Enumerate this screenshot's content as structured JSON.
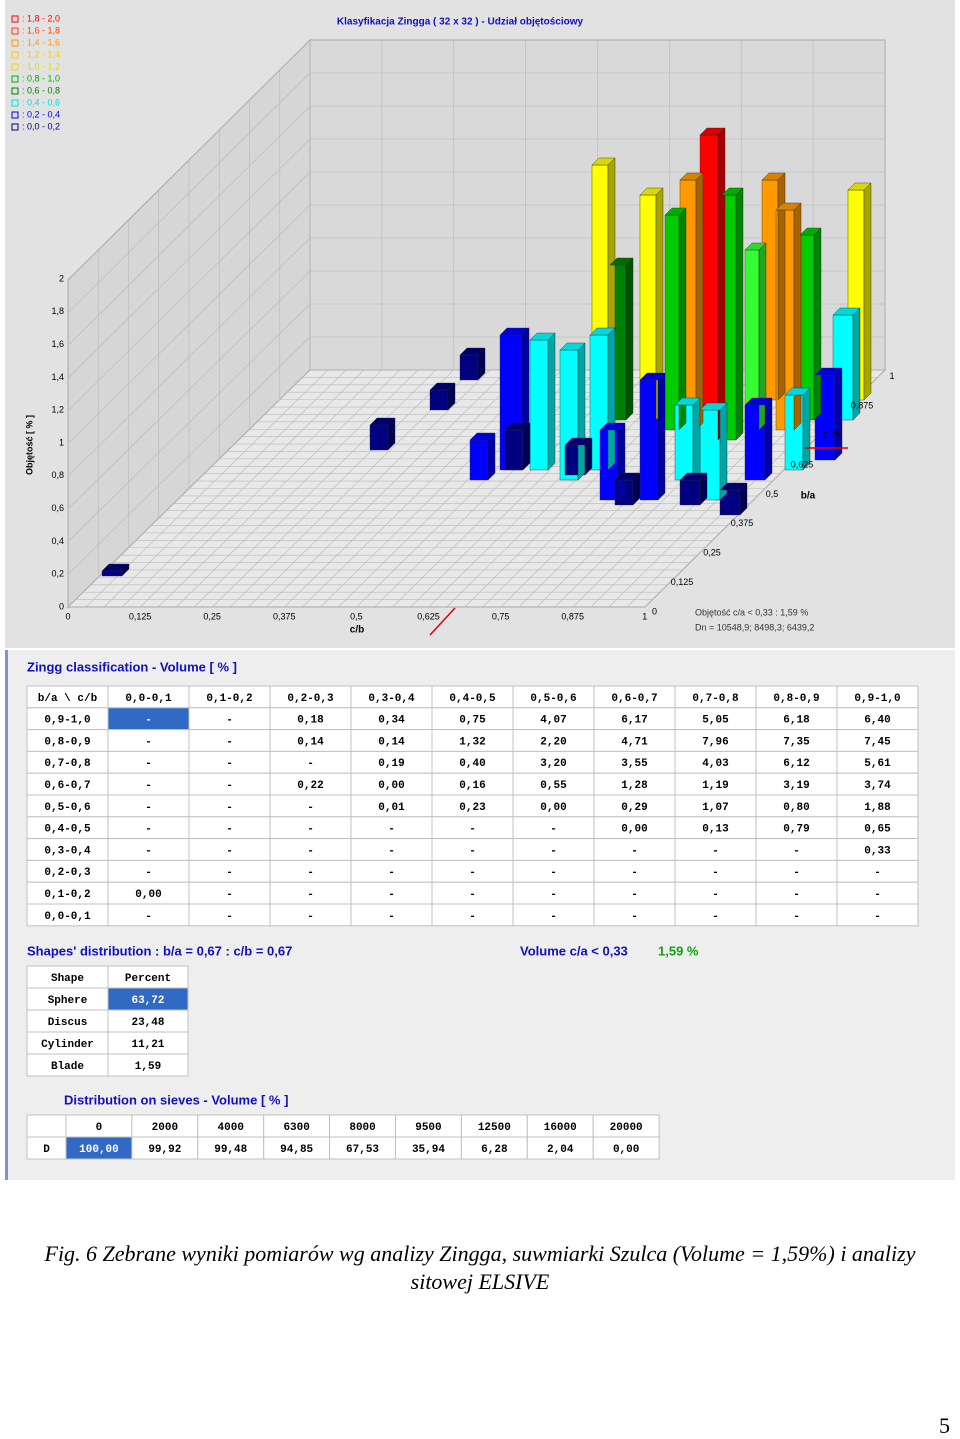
{
  "plot": {
    "title": "Klasyfikacja Zingga  ( 32 x 32 ) - Udział objętościowy",
    "legend": [
      {
        "label": ": 1,8 - 2,0",
        "color": "#ff0000"
      },
      {
        "label": ": 1,6 - 1,8",
        "color": "#ff4000"
      },
      {
        "label": ": 1,4 - 1,6",
        "color": "#ff9900"
      },
      {
        "label": ": 1,2 - 1,4",
        "color": "#ffcc00"
      },
      {
        "label": ": 1,0 - 1,2",
        "color": "#e0e000"
      },
      {
        "label": ": 0,8 - 1,0",
        "color": "#00b000"
      },
      {
        "label": ": 0,6 - 0,8",
        "color": "#008000"
      },
      {
        "label": ": 0,4 - 0,6",
        "color": "#00e0e0"
      },
      {
        "label": ": 0,2 - 0,4",
        "color": "#0000ff"
      },
      {
        "label": ": 0,0 - 0,2",
        "color": "#000080"
      }
    ],
    "y_label": "Objętość [ % ]",
    "y_ticks": [
      "0",
      "0,2",
      "0,4",
      "0,6",
      "0,8",
      "1",
      "1,2",
      "1,4",
      "1,6",
      "1,8",
      "2"
    ],
    "cb_ticks": [
      "0",
      "0,125",
      "0,25",
      "0,375",
      "0,5",
      "0,625",
      "0,75",
      "0,875",
      "1"
    ],
    "cb_label": "c/b",
    "ba_ticks": [
      "0",
      "0,125",
      "0,25",
      "0,375",
      "0,5",
      "0,625",
      "0,75",
      "0,875",
      "1"
    ],
    "ba_label": "b/a",
    "notes": [
      "Objętość c/a < 0,33 : 1,59 %",
      "Dn = 10548,9; 8498,3; 6439,2"
    ]
  },
  "zingg": {
    "title": "Zingg classification  - Volume [ % ]",
    "header": [
      "b/a \\ c/b",
      "0,0-0,1",
      "0,1-0,2",
      "0,2-0,3",
      "0,3-0,4",
      "0,4-0,5",
      "0,5-0,6",
      "0,6-0,7",
      "0,7-0,8",
      "0,8-0,9",
      "0,9-1,0"
    ],
    "rows": [
      [
        "0,9-1,0",
        "-",
        "-",
        "0,18",
        "0,34",
        "0,75",
        "4,07",
        "6,17",
        "5,05",
        "6,18",
        "6,40"
      ],
      [
        "0,8-0,9",
        "-",
        "-",
        "0,14",
        "0,14",
        "1,32",
        "2,20",
        "4,71",
        "7,96",
        "7,35",
        "7,45"
      ],
      [
        "0,7-0,8",
        "-",
        "-",
        "-",
        "0,19",
        "0,40",
        "3,20",
        "3,55",
        "4,03",
        "6,12",
        "5,61"
      ],
      [
        "0,6-0,7",
        "-",
        "-",
        "0,22",
        "0,00",
        "0,16",
        "0,55",
        "1,28",
        "1,19",
        "3,19",
        "3,74"
      ],
      [
        "0,5-0,6",
        "-",
        "-",
        "-",
        "0,01",
        "0,23",
        "0,00",
        "0,29",
        "1,07",
        "0,80",
        "1,88"
      ],
      [
        "0,4-0,5",
        "-",
        "-",
        "-",
        "-",
        "-",
        "-",
        "0,00",
        "0,13",
        "0,79",
        "0,65"
      ],
      [
        "0,3-0,4",
        "-",
        "-",
        "-",
        "-",
        "-",
        "-",
        "-",
        "-",
        "-",
        "0,33"
      ],
      [
        "0,2-0,3",
        "-",
        "-",
        "-",
        "-",
        "-",
        "-",
        "-",
        "-",
        "-",
        "-"
      ],
      [
        "0,1-0,2",
        "0,00",
        "-",
        "-",
        "-",
        "-",
        "-",
        "-",
        "-",
        "-",
        "-"
      ],
      [
        "0,0-0,1",
        "-",
        "-",
        "-",
        "-",
        "-",
        "-",
        "-",
        "-",
        "-",
        "-"
      ]
    ]
  },
  "shapes": {
    "summary": "Shapes' distribution  :  b/a = 0,67  :  c/b = 0,67",
    "volume_label": "Volume c/a < 0,33",
    "volume_value": "1,59 %",
    "header": [
      "Shape",
      "Percent"
    ],
    "rows": [
      [
        "Sphere",
        "63,72"
      ],
      [
        "Discus",
        "23,48"
      ],
      [
        "Cylinder",
        "11,21"
      ],
      [
        "Blade",
        "1,59"
      ]
    ]
  },
  "sieves": {
    "title": "Distribution on sieves  - Volume [ % ]",
    "header": [
      "0",
      "2000",
      "4000",
      "6300",
      "8000",
      "9500",
      "12500",
      "16000",
      "20000"
    ],
    "row_label": "D",
    "row": [
      "100,00",
      "99,92",
      "99,48",
      "94,85",
      "67,53",
      "35,94",
      "6,28",
      "2,04",
      "0,00"
    ]
  },
  "caption": [
    "Fig. 6 Zebrane wyniki pomiarów wg analizy Zingga, suwmiarki Szulca (Volume = 1,59%) i analizy",
    "sitowej ELSIVE"
  ],
  "page_number": "5"
}
